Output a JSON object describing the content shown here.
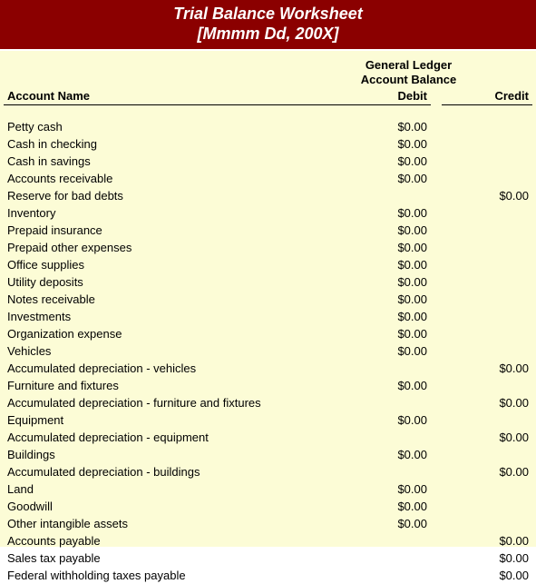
{
  "header": {
    "title_line1": "Trial Balance Worksheet",
    "title_line2": "[Mmmm Dd, 200X]",
    "bg_color": "#8b0000",
    "text_color": "#ffffff"
  },
  "body": {
    "bg_color": "#fcfcd6",
    "ledger_caption_line1": "General Ledger",
    "ledger_caption_line2": "Account Balance"
  },
  "columns": {
    "account": "Account Name",
    "debit": "Debit",
    "credit": "Credit"
  },
  "rows": [
    {
      "account": "Petty cash",
      "debit": "$0.00",
      "credit": ""
    },
    {
      "account": "Cash in checking",
      "debit": "$0.00",
      "credit": ""
    },
    {
      "account": "Cash in savings",
      "debit": "$0.00",
      "credit": ""
    },
    {
      "account": "Accounts receivable",
      "debit": "$0.00",
      "credit": ""
    },
    {
      "account": "Reserve for bad debts",
      "debit": "",
      "credit": "$0.00"
    },
    {
      "account": "Inventory",
      "debit": "$0.00",
      "credit": ""
    },
    {
      "account": "Prepaid insurance",
      "debit": "$0.00",
      "credit": ""
    },
    {
      "account": "Prepaid other expenses",
      "debit": "$0.00",
      "credit": ""
    },
    {
      "account": "Office supplies",
      "debit": "$0.00",
      "credit": ""
    },
    {
      "account": "Utility deposits",
      "debit": "$0.00",
      "credit": ""
    },
    {
      "account": "Notes receivable",
      "debit": "$0.00",
      "credit": ""
    },
    {
      "account": "Investments",
      "debit": "$0.00",
      "credit": ""
    },
    {
      "account": "Organization expense",
      "debit": "$0.00",
      "credit": ""
    },
    {
      "account": "Vehicles",
      "debit": "$0.00",
      "credit": ""
    },
    {
      "account": "Accumulated depreciation - vehicles",
      "debit": "",
      "credit": "$0.00"
    },
    {
      "account": "Furniture and fixtures",
      "debit": "$0.00",
      "credit": ""
    },
    {
      "account": "Accumulated depreciation - furniture and fixtures",
      "debit": "",
      "credit": "$0.00"
    },
    {
      "account": "Equipment",
      "debit": "$0.00",
      "credit": ""
    },
    {
      "account": "Accumulated depreciation - equipment",
      "debit": "",
      "credit": "$0.00"
    },
    {
      "account": "Buildings",
      "debit": "$0.00",
      "credit": ""
    },
    {
      "account": "Accumulated depreciation - buildings",
      "debit": "",
      "credit": "$0.00"
    },
    {
      "account": "Land",
      "debit": "$0.00",
      "credit": ""
    },
    {
      "account": "Goodwill",
      "debit": "$0.00",
      "credit": ""
    },
    {
      "account": "Other intangible assets",
      "debit": "$0.00",
      "credit": ""
    },
    {
      "account": "Accounts payable",
      "debit": "",
      "credit": "$0.00"
    },
    {
      "account": "Sales tax payable",
      "debit": "",
      "credit": "$0.00"
    },
    {
      "account": "Federal withholding taxes payable",
      "debit": "",
      "credit": "$0.00"
    }
  ]
}
